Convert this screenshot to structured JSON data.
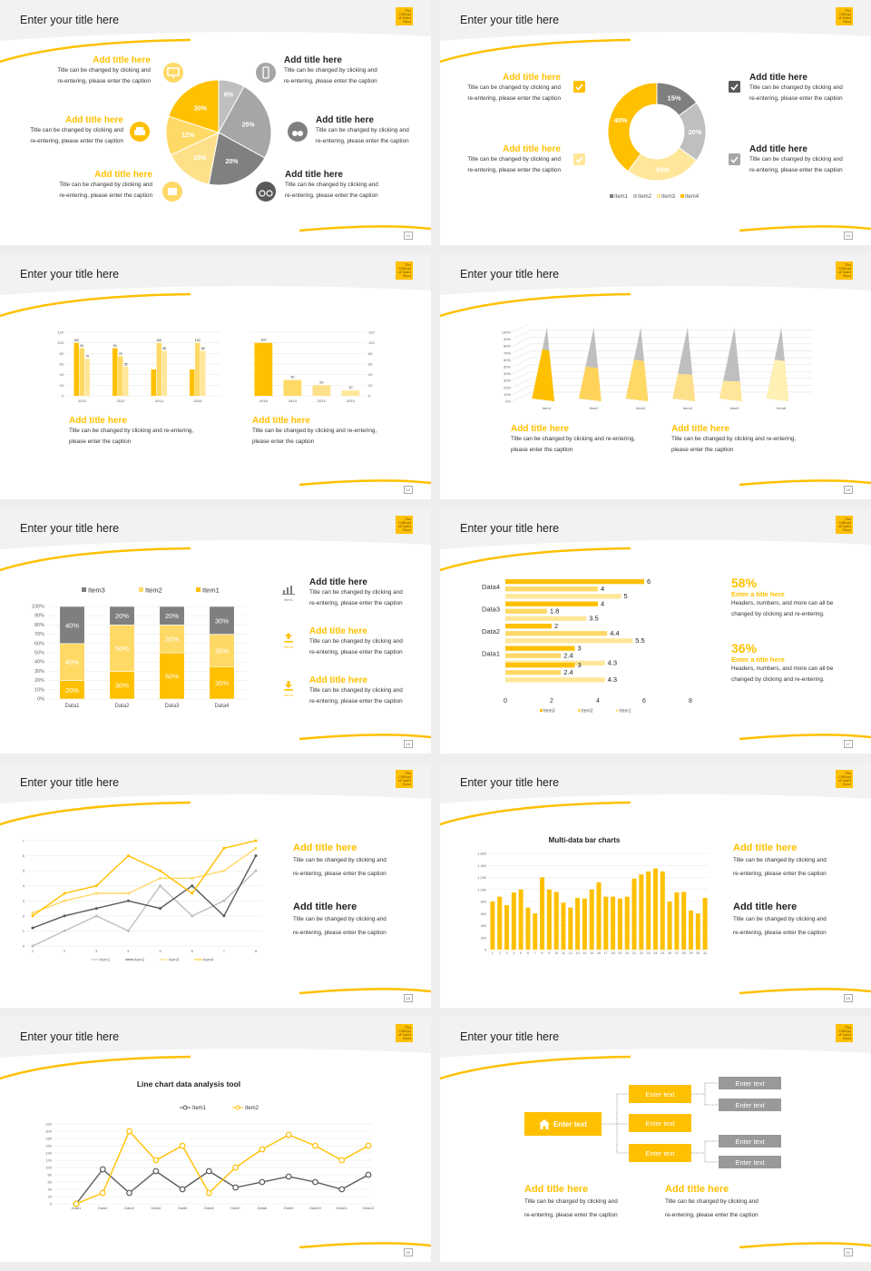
{
  "slides": [
    {
      "title": "Enter your title here",
      "page": "12",
      "blocks": [
        {
          "heading": "Add title here",
          "caption1": "Title can be changed by clicking and",
          "caption2": "re-entering, please enter the caption"
        },
        {
          "heading": "Add title here",
          "caption1": "Title can be changed by clicking and",
          "caption2": "re-entering, please enter the caption"
        },
        {
          "heading": "Add title here",
          "caption1": "Title can be changed by clicking and",
          "caption2": "re-entering, please enter the caption"
        },
        {
          "heading": "Add title here",
          "caption1": "Title can be changed by clicking and",
          "caption2": "re-entering, please enter the caption"
        },
        {
          "heading": "Add title here",
          "caption1": "Title can be changed by clicking and",
          "caption2": "re-entering, please enter the caption"
        },
        {
          "heading": "Add title here",
          "caption1": "Title can be changed by clicking and",
          "caption2": "re-entering, please enter the caption"
        }
      ]
    },
    {
      "title": "Enter your title here",
      "page": "13",
      "blocks": [
        {
          "heading": "Add title here",
          "caption1": "Title can be changed by clicking and",
          "caption2": "re-entering, please enter the caption"
        },
        {
          "heading": "Add title here",
          "caption1": "Title can be changed by clicking and",
          "caption2": "re-entering, please enter the caption"
        },
        {
          "heading": "Add title here",
          "caption1": "Title can be changed by clicking and",
          "caption2": "re-entering, please enter the caption"
        },
        {
          "heading": "Add title here",
          "caption1": "Title can be changed by clicking and",
          "caption2": "re-entering, please enter the caption"
        }
      ]
    },
    {
      "title": "Enter your title here",
      "page": "14",
      "blocks": [
        {
          "heading": "Add title here",
          "caption1": "Title can be changed by clicking and re-entering,",
          "caption2": "please enter the caption"
        },
        {
          "heading": "Add title here",
          "caption1": "Title can be changed by clicking and re-entering,",
          "caption2": "please enter the caption"
        }
      ]
    },
    {
      "title": "Enter your title here",
      "page": "15",
      "blocks": [
        {
          "heading": "Add title here",
          "caption1": "Title can be changed by clicking and re-entering,",
          "caption2": "please enter the caption"
        },
        {
          "heading": "Add title here",
          "caption1": "Title can be changed by clicking and re-entering,",
          "caption2": "please enter the caption"
        }
      ]
    },
    {
      "title": "Enter your title here",
      "page": "16",
      "blocks": [
        {
          "heading": "Add title here",
          "caption1": "Title can be changed by clicking and",
          "caption2": "re-entering, please enter the caption",
          "icon_label": "Item1"
        },
        {
          "heading": "Add title here",
          "caption1": "Title can be changed by clicking and",
          "caption2": "re-entering, please enter the caption",
          "icon_label": "Item2"
        },
        {
          "heading": "Add title here",
          "caption1": "Title can be changed by clicking and",
          "caption2": "re-entering, please enter the caption",
          "icon_label": "Item3"
        }
      ]
    },
    {
      "title": "Enter your title here",
      "page": "17",
      "stats": [
        {
          "value": "58%",
          "heading": "Enter a title here",
          "caption1": "Headers, numbers, and more can all be",
          "caption2": "changed by clicking and re-entering."
        },
        {
          "value": "36%",
          "heading": "Enter a title here",
          "caption1": "Headers, numbers, and more can all be",
          "caption2": "changed by clicking and re-entering."
        }
      ]
    },
    {
      "title": "Enter your title here",
      "page": "18",
      "blocks": [
        {
          "heading": "Add title here",
          "caption1": "Title can be changed by clicking and",
          "caption2": "re-entering, please enter the caption"
        },
        {
          "heading": "Add title here",
          "caption1": "Title can be changed by clicking and",
          "caption2": "re-entering, please enter the caption"
        }
      ]
    },
    {
      "title": "Enter your title here",
      "page": "19",
      "blocks": [
        {
          "heading": "Add title here",
          "caption1": "Title can be changed by clicking and",
          "caption2": "re-entering, please enter the caption"
        },
        {
          "heading": "Add title here",
          "caption1": "Title can be changed by clicking and",
          "caption2": "re-entering, please enter the caption"
        }
      ]
    },
    {
      "title": "Enter your title here",
      "page": "20"
    },
    {
      "title": "Enter your title here",
      "page": "21",
      "tree": {
        "root": "Enter text",
        "mid": [
          "Enter text",
          "Enter text",
          "Enter text"
        ],
        "leaves": [
          "Enter text",
          "Enter text",
          "Enter text",
          "Enter text"
        ]
      },
      "blocks": [
        {
          "heading": "Add title here",
          "caption1": "Title can be changed by clicking and",
          "caption2": "re-entering, please enter the caption"
        },
        {
          "heading": "Add title here",
          "caption1": "Title can be changed by clicking and",
          "caption2": "re-entering, please enter the caption"
        }
      ]
    }
  ],
  "logo": {
    "line1": "The",
    "line2": "College",
    "line3": "of Saint",
    "line4": "Rose"
  },
  "icons": [
    "monitor-icon",
    "car-icon",
    "book-icon",
    "phone-icon",
    "binoculars-icon",
    "bicycle-icon",
    "checkbox-icon",
    "bar-chart-icon",
    "upload-icon",
    "download-icon",
    "home-icon"
  ],
  "colors": {
    "accent": "#ffc000",
    "accent_light": "#ffd966",
    "accent_pale": "#ffe699",
    "gray": "#a6a6a6",
    "dark_gray": "#7f7f7f"
  },
  "chart_data": [
    {
      "id": "pie",
      "type": "pie",
      "values": [
        8,
        25,
        20,
        15,
        12,
        20
      ],
      "labels": [
        "8%",
        "25%",
        "20%",
        "15%",
        "12%",
        "20%"
      ]
    },
    {
      "id": "donut",
      "type": "pie",
      "values": [
        15,
        20,
        25,
        40
      ],
      "labels": [
        "15%",
        "20%",
        "25%",
        "40%"
      ],
      "legend": [
        "Item1",
        "Item2",
        "Item3",
        "Item4"
      ],
      "legend_position": "bottom"
    },
    {
      "id": "bar-grouped",
      "type": "bar",
      "categories": [
        "2010",
        "2012",
        "2014",
        "2016"
      ],
      "series": [
        {
          "values": [
            100,
            90,
            50,
            50
          ]
        },
        {
          "values": [
            90,
            75,
            100,
            100
          ]
        },
        {
          "values": [
            70,
            55,
            85,
            85
          ]
        }
      ],
      "labels": [
        [
          "100",
          "90",
          "70"
        ],
        [
          "90",
          "75",
          "55"
        ],
        [
          "",
          "100",
          "85"
        ],
        [
          "",
          "100",
          "85"
        ]
      ],
      "ylim": [
        0,
        120
      ],
      "yticks": [
        "0",
        "20",
        "40",
        "60",
        "80",
        "100",
        "120"
      ]
    },
    {
      "id": "bar-single",
      "type": "bar",
      "categories": [
        "2016",
        "2014",
        "2012",
        "2010"
      ],
      "values": [
        100,
        30,
        20,
        10
      ],
      "labels": [
        "100",
        "30",
        "20",
        "10"
      ],
      "ylim": [
        0,
        120
      ],
      "yticks": [
        "0",
        "20",
        "40",
        "60",
        "80",
        "100",
        "120"
      ]
    },
    {
      "id": "pyramid",
      "type": "bar",
      "categories": [
        "Item1",
        "Item2",
        "Item3",
        "Item4",
        "Item5",
        "Item6"
      ],
      "series": [
        {
          "values": [
            70,
            45,
            55,
            35,
            25,
            55
          ]
        },
        {
          "values": [
            30,
            55,
            45,
            65,
            75,
            45
          ]
        }
      ],
      "ylim": [
        0,
        100
      ],
      "yticks": [
        "0%",
        "10%",
        "20%",
        "30%",
        "40%",
        "50%",
        "60%",
        "70%",
        "80%",
        "90%",
        "100%"
      ]
    },
    {
      "id": "stacked",
      "type": "bar",
      "categories": [
        "Data1",
        "Data2",
        "Data3",
        "Data4"
      ],
      "series": [
        {
          "name": "Item1",
          "values": [
            20,
            30,
            50,
            35
          ]
        },
        {
          "name": "Item2",
          "values": [
            40,
            50,
            30,
            35
          ]
        },
        {
          "name": "Item3",
          "values": [
            40,
            20,
            20,
            30
          ]
        }
      ],
      "labels": {
        "Item1": [
          "20%",
          "30%",
          "50%",
          "35%"
        ],
        "Item2": [
          "40%",
          "50%",
          "30%",
          "35%"
        ],
        "Item3": [
          "40%",
          "20%",
          "20%",
          "30%"
        ]
      },
      "legend": [
        "Item3",
        "Item2",
        "Item1"
      ],
      "legend_position": "top",
      "yticks": [
        "0%",
        "10%",
        "20%",
        "30%",
        "40%",
        "50%",
        "60%",
        "70%",
        "80%",
        "90%",
        "100%"
      ]
    },
    {
      "id": "hbar",
      "type": "bar",
      "categories": [
        "Data1",
        "Data2",
        "Data3",
        "Data4"
      ],
      "series": [
        {
          "name": "Item3",
          "values": [
            3,
            2,
            4,
            4
          ]
        },
        {
          "name": "Item2",
          "values": [
            2.4,
            4.4,
            4,
            6
          ]
        },
        {
          "name": "Item1",
          "values": [
            4.3,
            5.5,
            3.5,
            5
          ]
        }
      ],
      "alt_series": [
        {
          "values": [
            3,
            2.4,
            4.3
          ]
        },
        {
          "values": [
            2,
            4.4,
            5.5
          ]
        },
        {
          "values": [
            1.8,
            3.5,
            4
          ]
        },
        {
          "values": [
            4,
            6,
            4
          ]
        },
        {
          "values": [
            4,
            5,
            6
          ]
        }
      ],
      "xlim": [
        0,
        8
      ],
      "xticks": [
        "0",
        "2",
        "4",
        "6",
        "8"
      ],
      "legend": [
        "Item3",
        "Item2",
        "Item1"
      ],
      "legend_position": "bottom"
    },
    {
      "id": "lines",
      "type": "line",
      "x": [
        1,
        2,
        3,
        4,
        5,
        6,
        7,
        8
      ],
      "series": [
        {
          "name": "Item1",
          "values": [
            0,
            1,
            2,
            1,
            4,
            2,
            3,
            5
          ]
        },
        {
          "name": "Item2",
          "values": [
            1.2,
            2,
            2.5,
            3,
            2.5,
            4,
            2,
            6
          ]
        },
        {
          "name": "Item3",
          "values": [
            2.2,
            3,
            3.5,
            3.5,
            4.5,
            4.5,
            5,
            6.5
          ]
        },
        {
          "name": "Item4",
          "values": [
            2,
            3.5,
            4,
            6,
            5,
            3.5,
            6.5,
            7
          ]
        }
      ],
      "ylim": [
        0,
        7
      ],
      "yticks": [
        "0",
        "1",
        "2",
        "3",
        "4",
        "5",
        "6",
        "7"
      ],
      "xticks": [
        "1",
        "2",
        "3",
        "4",
        "5",
        "6",
        "7",
        "8"
      ],
      "legend_position": "bottom"
    },
    {
      "id": "multibar",
      "type": "bar",
      "title": "Multi-data bar charts",
      "categories": [
        "1",
        "2",
        "3",
        "4",
        "5",
        "6",
        "7",
        "8",
        "9",
        "10",
        "11",
        "12",
        "13",
        "14",
        "15",
        "16",
        "17",
        "18",
        "19",
        "20",
        "21",
        "22",
        "23",
        "24",
        "25",
        "26",
        "27",
        "28",
        "29",
        "30",
        "31"
      ],
      "values": [
        800,
        880,
        740,
        950,
        1000,
        700,
        600,
        1200,
        1000,
        960,
        780,
        700,
        860,
        850,
        1000,
        1120,
        880,
        880,
        850,
        880,
        1180,
        1250,
        1300,
        1350,
        1300,
        800,
        950,
        960,
        650,
        600,
        860
      ],
      "ylim": [
        0,
        1600
      ],
      "yticks": [
        "0",
        "200",
        "400",
        "600",
        "800",
        "1,000",
        "1,200",
        "1,400",
        "1,600"
      ]
    },
    {
      "id": "line-analysis",
      "type": "line",
      "title": "Line chart data analysis tool",
      "categories": [
        "Data1",
        "Data2",
        "Data3",
        "Data4",
        "Data5",
        "Data6",
        "Data7",
        "Data8",
        "Data9",
        "Data10",
        "Data11",
        "Data12"
      ],
      "series": [
        {
          "name": "Item1",
          "values": [
            0,
            95,
            30,
            90,
            40,
            90,
            45,
            60,
            75,
            60,
            40,
            80
          ]
        },
        {
          "name": "Item2",
          "values": [
            0,
            30,
            200,
            120,
            160,
            30,
            100,
            150,
            190,
            160,
            120,
            160
          ]
        }
      ],
      "ylim": [
        0,
        220
      ],
      "yticks": [
        "0",
        "20",
        "40",
        "60",
        "80",
        "100",
        "120",
        "140",
        "160",
        "180",
        "200",
        "220"
      ],
      "legend_position": "top"
    }
  ]
}
